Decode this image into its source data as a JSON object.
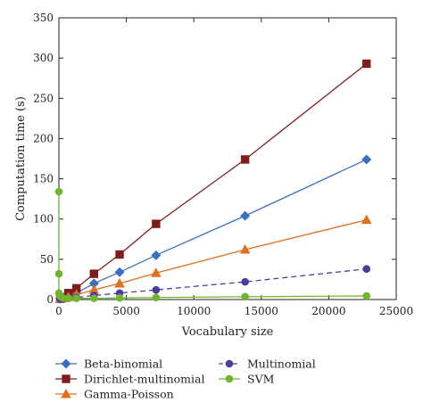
{
  "chart_data": {
    "type": "line",
    "xlabel": "Vocabulary size",
    "ylabel": "Computation time (s)",
    "xlim": [
      0,
      25000
    ],
    "ylim": [
      0,
      350
    ],
    "xticks": [
      0,
      5000,
      10000,
      15000,
      20000,
      25000
    ],
    "yticks": [
      0,
      50,
      100,
      150,
      200,
      250,
      300,
      350
    ],
    "grid": false,
    "legend_position": "bottom",
    "series": [
      {
        "name": "Beta-binomial",
        "color": "#3a6fbf",
        "marker": "diamond",
        "dash": "solid",
        "x": [
          100,
          300,
          700,
          1300,
          2600,
          4500,
          7200,
          13800,
          22800
        ],
        "y": [
          1,
          2,
          4,
          8,
          20,
          34,
          55,
          104,
          174
        ]
      },
      {
        "name": "Dirichlet-multinomial",
        "color": "#7f1d1d",
        "marker": "square",
        "dash": "solid",
        "x": [
          100,
          300,
          700,
          1300,
          2600,
          4500,
          7200,
          13800,
          22800
        ],
        "y": [
          1,
          3,
          8,
          14,
          32,
          56,
          94,
          174,
          293
        ]
      },
      {
        "name": "Gamma-Poisson",
        "color": "#e0701f",
        "marker": "triangle",
        "dash": "solid",
        "x": [
          100,
          300,
          700,
          1300,
          2600,
          4500,
          7200,
          13800,
          22800
        ],
        "y": [
          1,
          2,
          3,
          6,
          12,
          20,
          33,
          62,
          99
        ]
      },
      {
        "name": "Multinomial",
        "color": "#4a3d9e",
        "marker": "circle",
        "dash": "dashed",
        "x": [
          100,
          300,
          700,
          1300,
          2600,
          4500,
          7200,
          13800,
          22800
        ],
        "y": [
          0.5,
          1,
          1.5,
          2.5,
          5,
          8,
          12,
          22,
          38
        ]
      },
      {
        "name": "SVM",
        "color": "#6fb52e",
        "marker": "circle",
        "dash": "solid",
        "x": [
          0,
          0,
          0,
          100,
          300,
          700,
          1300,
          2600,
          4500,
          7200,
          13800,
          22800
        ],
        "y": [
          134,
          32,
          8,
          4,
          2,
          1.5,
          1.5,
          1.5,
          2,
          2.5,
          3.5,
          4.5
        ]
      }
    ]
  }
}
